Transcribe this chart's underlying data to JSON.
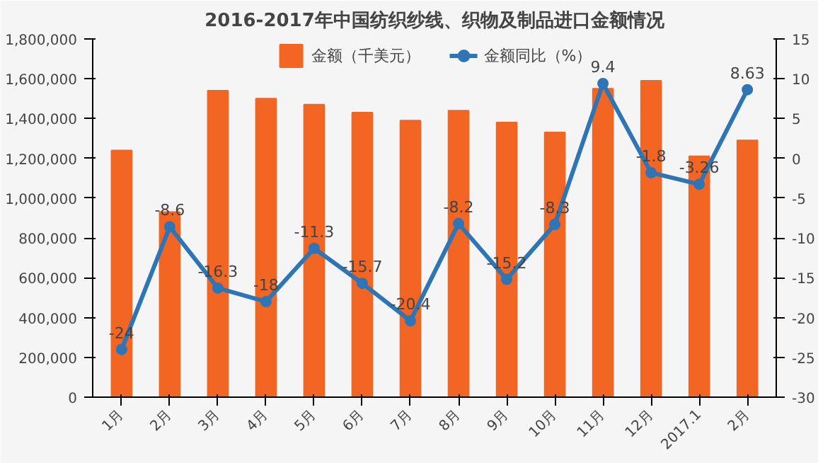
{
  "chart_data": {
    "type": "bar",
    "title": "2016-2017年中国纺织纱线、织物及制品进口金额情况",
    "categories": [
      "1月",
      "2月",
      "3月",
      "4月",
      "5月",
      "6月",
      "7月",
      "8月",
      "9月",
      "10月",
      "11月",
      "12月",
      "2017.1",
      "2月"
    ],
    "series": [
      {
        "name": "金额（千美元）",
        "color": "#f26522",
        "values": [
          1240000,
          930000,
          1540000,
          1500000,
          1470000,
          1430000,
          1390000,
          1440000,
          1380000,
          1330000,
          1550000,
          1590000,
          1210000,
          1290000
        ]
      },
      {
        "name": "金额同比（%）",
        "type": "line",
        "axis": "y2",
        "color": "#2e75b6",
        "marker": "circle",
        "values": [
          -24,
          -8.6,
          -16.3,
          -18,
          -11.3,
          -15.7,
          -20.4,
          -8.2,
          -15.2,
          -8.3,
          9.4,
          -1.8,
          -3.26,
          8.63
        ],
        "value_labels": [
          "-24",
          "-8.6",
          "-16.3",
          "-18",
          "-11.3",
          "-15.7",
          "-20.4",
          "-8.2",
          "-15.2",
          "-8.3",
          "9.4",
          "-1.8",
          "-3.26",
          "8.63"
        ]
      }
    ],
    "ylim": [
      0,
      1800000
    ],
    "yticks": [
      {
        "value": 0,
        "label": "0"
      },
      {
        "value": 200000,
        "label": "200,000"
      },
      {
        "value": 400000,
        "label": "400,000"
      },
      {
        "value": 600000,
        "label": "600,000"
      },
      {
        "value": 800000,
        "label": "800,000"
      },
      {
        "value": 1000000,
        "label": "1,000,000"
      },
      {
        "value": 1200000,
        "label": "1,200,000"
      },
      {
        "value": 1400000,
        "label": "1,400,000"
      },
      {
        "value": 1600000,
        "label": "1,600,000"
      },
      {
        "value": 1800000,
        "label": "1,800,000"
      }
    ],
    "y2lim": [
      -30,
      15
    ],
    "y2ticks": [
      -30,
      -25,
      -20,
      -15,
      -10,
      -5,
      0,
      5,
      10,
      15
    ],
    "grid": false,
    "legend": "top"
  }
}
